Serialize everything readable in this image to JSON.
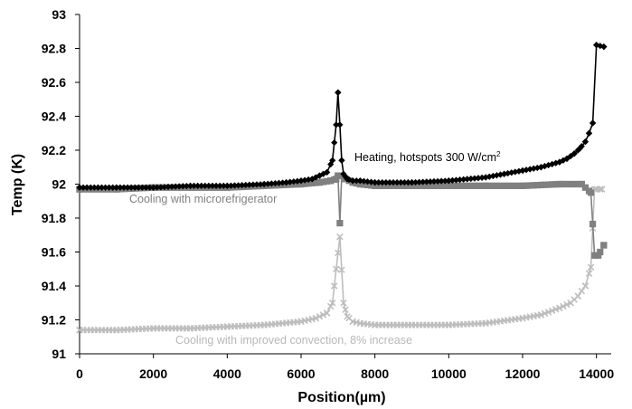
{
  "chart_data": {
    "type": "line",
    "xlabel": "Position(µm)",
    "ylabel": "Temp (K)",
    "xlim": [
      0,
      14400
    ],
    "ylim": [
      91,
      93
    ],
    "x_ticks": [
      "0",
      "2000",
      "4000",
      "6000",
      "8000",
      "10000",
      "12000",
      "14000"
    ],
    "y_ticks": [
      "91",
      "91.2",
      "91.4",
      "91.6",
      "91.8",
      "92",
      "92.2",
      "92.4",
      "92.6",
      "92.8",
      "93"
    ],
    "grid": false,
    "legend": "none",
    "annotations": [
      {
        "text_main": "Heating, hotspots 300 W/cm",
        "text_sup": "2",
        "series": "heating"
      },
      {
        "text": "Cooling with microrefrigerator",
        "series": "micro"
      },
      {
        "text": "Cooling with improved convection, 8% increase",
        "series": "convection"
      }
    ],
    "series": [
      {
        "key": "heating",
        "color": "#000000",
        "marker": "diamond",
        "x": [
          0,
          1000,
          2000,
          3000,
          4000,
          5000,
          5600,
          6000,
          6300,
          6500,
          6700,
          6850,
          6950,
          7000,
          7050,
          7100,
          7150,
          7250,
          7400,
          7600,
          8000,
          9000,
          10000,
          11000,
          11500,
          12000,
          12500,
          13000,
          13200,
          13400,
          13550,
          13700,
          13800,
          13900,
          14000,
          14200
        ],
        "values": [
          91.98,
          91.98,
          91.98,
          91.99,
          91.99,
          92.0,
          92.01,
          92.02,
          92.03,
          92.05,
          92.07,
          92.14,
          92.35,
          92.54,
          92.35,
          92.14,
          92.06,
          92.03,
          92.02,
          92.02,
          92.01,
          92.01,
          92.02,
          92.04,
          92.06,
          92.08,
          92.1,
          92.13,
          92.15,
          92.18,
          92.21,
          92.25,
          92.3,
          92.36,
          92.82,
          92.81
        ]
      },
      {
        "key": "micro",
        "color": "#808080",
        "marker": "square",
        "x": [
          0,
          1000,
          2000,
          3000,
          4000,
          5000,
          6000,
          6500,
          6800,
          6950,
          7000,
          7050,
          7100,
          7200,
          7400,
          7600,
          8000,
          9000,
          10000,
          11000,
          12000,
          13000,
          13600,
          13850,
          13950,
          14050,
          14200
        ],
        "values": [
          91.97,
          91.97,
          91.98,
          91.98,
          91.98,
          91.99,
          92.0,
          92.01,
          92.02,
          92.03,
          92.05,
          91.77,
          92.05,
          92.03,
          92.01,
          92.0,
          91.99,
          91.99,
          91.99,
          91.99,
          91.99,
          92.0,
          92.0,
          91.95,
          91.58,
          91.58,
          91.64
        ]
      },
      {
        "key": "convection",
        "color": "#bdbdbd",
        "marker": "x",
        "x": [
          0,
          1000,
          2000,
          3000,
          4000,
          5000,
          6000,
          6400,
          6700,
          6850,
          6950,
          7050,
          7150,
          7250,
          7400,
          7600,
          8000,
          9000,
          10000,
          11000,
          12000,
          12500,
          13000,
          13300,
          13500,
          13700,
          13850,
          13950,
          14000,
          14150
        ],
        "values": [
          91.14,
          91.14,
          91.15,
          91.15,
          91.16,
          91.17,
          91.19,
          91.21,
          91.24,
          91.3,
          91.5,
          91.69,
          91.3,
          91.22,
          91.19,
          91.18,
          91.17,
          91.17,
          91.17,
          91.18,
          91.21,
          91.23,
          91.27,
          91.3,
          91.34,
          91.4,
          91.51,
          91.97,
          91.97,
          91.97
        ]
      }
    ]
  }
}
